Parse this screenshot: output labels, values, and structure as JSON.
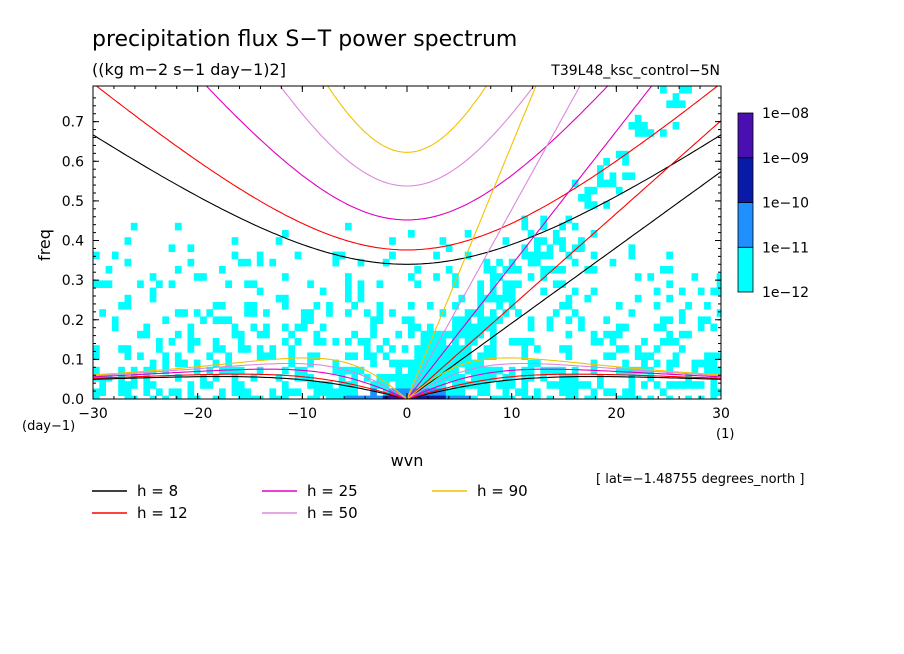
{
  "header": {
    "title": "precipitation flux S−T power spectrum",
    "units": "((kg m−2 s−1 day−1)2]",
    "experiment": "T39L48_ksc_control−5N",
    "footnote": "[ lat=−1.48755 degrees_north ]"
  },
  "chart_data": {
    "type": "heatmap",
    "xlabel": "wvn",
    "ylabel": "freq",
    "x_unit_label": "(1)",
    "y_unit_label": "(day−1)",
    "xlim": [
      -30,
      30
    ],
    "ylim": [
      0,
      0.79
    ],
    "xticks": [
      -30,
      -20,
      -10,
      0,
      10,
      20,
      30
    ],
    "xtick_labels": [
      "−30",
      "−20",
      "−10",
      "0",
      "10",
      "20",
      "30"
    ],
    "yticks": [
      0,
      0.1,
      0.2,
      0.3,
      0.4,
      0.5,
      0.6,
      0.7
    ],
    "ytick_labels": [
      "0.0",
      "0.1",
      "0.2",
      "0.3",
      "0.4",
      "0.5",
      "0.6",
      "0.7"
    ],
    "colorbar": {
      "levels": [
        "1e−12",
        "1e−11",
        "1e−10",
        "1e−09",
        "1e−08"
      ],
      "colors": [
        "#00ffff",
        "#1e90ff",
        "#0a1aa8",
        "#4a0fb0"
      ]
    },
    "dispersion_curves": [
      {
        "label": "h =  8",
        "h": 8,
        "color": "#000000"
      },
      {
        "label": "h = 12",
        "h": 12,
        "color": "#ff0000"
      },
      {
        "label": "h = 25",
        "h": 25,
        "color": "#e000c0"
      },
      {
        "label": "h = 50",
        "h": 50,
        "color": "#dd88dd"
      },
      {
        "label": "h = 90",
        "h": 90,
        "color": "#f2c200"
      }
    ]
  }
}
